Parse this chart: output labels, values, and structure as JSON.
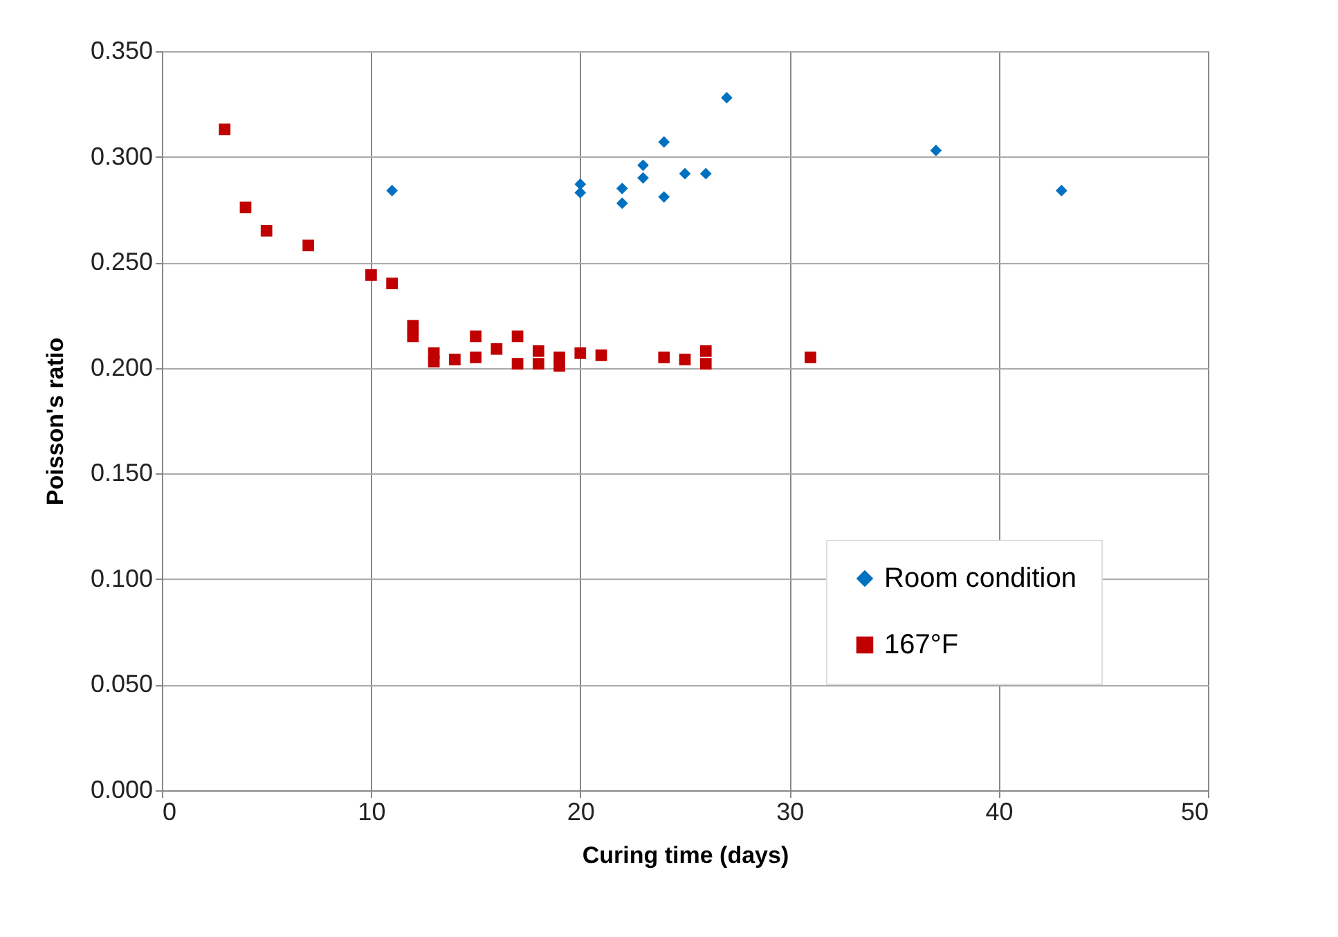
{
  "chart_data": {
    "type": "scatter",
    "xlabel": "Curing time (days)",
    "ylabel": "Poisson's ratio",
    "xlim": [
      0,
      50
    ],
    "xticks": [
      0,
      10,
      20,
      30,
      40,
      50
    ],
    "ylim": [
      0,
      0.35
    ],
    "yticks": [
      {
        "value": 0,
        "label": "0.000"
      },
      {
        "value": 0.05,
        "label": "0.050"
      },
      {
        "value": 0.1,
        "label": "0.100"
      },
      {
        "value": 0.15,
        "label": "0.150"
      },
      {
        "value": 0.2,
        "label": "0.200"
      },
      {
        "value": 0.25,
        "label": "0.250"
      },
      {
        "value": 0.3,
        "label": "0.300"
      },
      {
        "value": 0.35,
        "label": "0.350"
      }
    ],
    "grid": true,
    "legend": "bottom right",
    "series": [
      {
        "name": "Room condition",
        "color": "#0070c0",
        "marker": "diamond",
        "x": [
          11,
          20,
          20,
          22,
          22,
          23,
          23,
          24,
          24,
          25,
          26,
          27,
          37,
          43
        ],
        "values": [
          0.284,
          0.287,
          0.283,
          0.285,
          0.278,
          0.296,
          0.29,
          0.307,
          0.281,
          0.292,
          0.292,
          0.328,
          0.303,
          0.284
        ]
      },
      {
        "name": "167°F",
        "color": "#c00000",
        "marker": "square",
        "x": [
          3,
          4,
          5,
          7,
          10,
          11,
          12,
          12,
          13,
          13,
          14,
          15,
          15,
          16,
          17,
          17,
          18,
          18,
          19,
          19,
          20,
          21,
          24,
          25,
          26,
          26,
          31
        ],
        "values": [
          0.313,
          0.276,
          0.265,
          0.258,
          0.244,
          0.24,
          0.22,
          0.215,
          0.207,
          0.203,
          0.204,
          0.215,
          0.205,
          0.209,
          0.215,
          0.202,
          0.208,
          0.202,
          0.205,
          0.201,
          0.207,
          0.206,
          0.205,
          0.204,
          0.208,
          0.202,
          0.205
        ]
      }
    ]
  }
}
